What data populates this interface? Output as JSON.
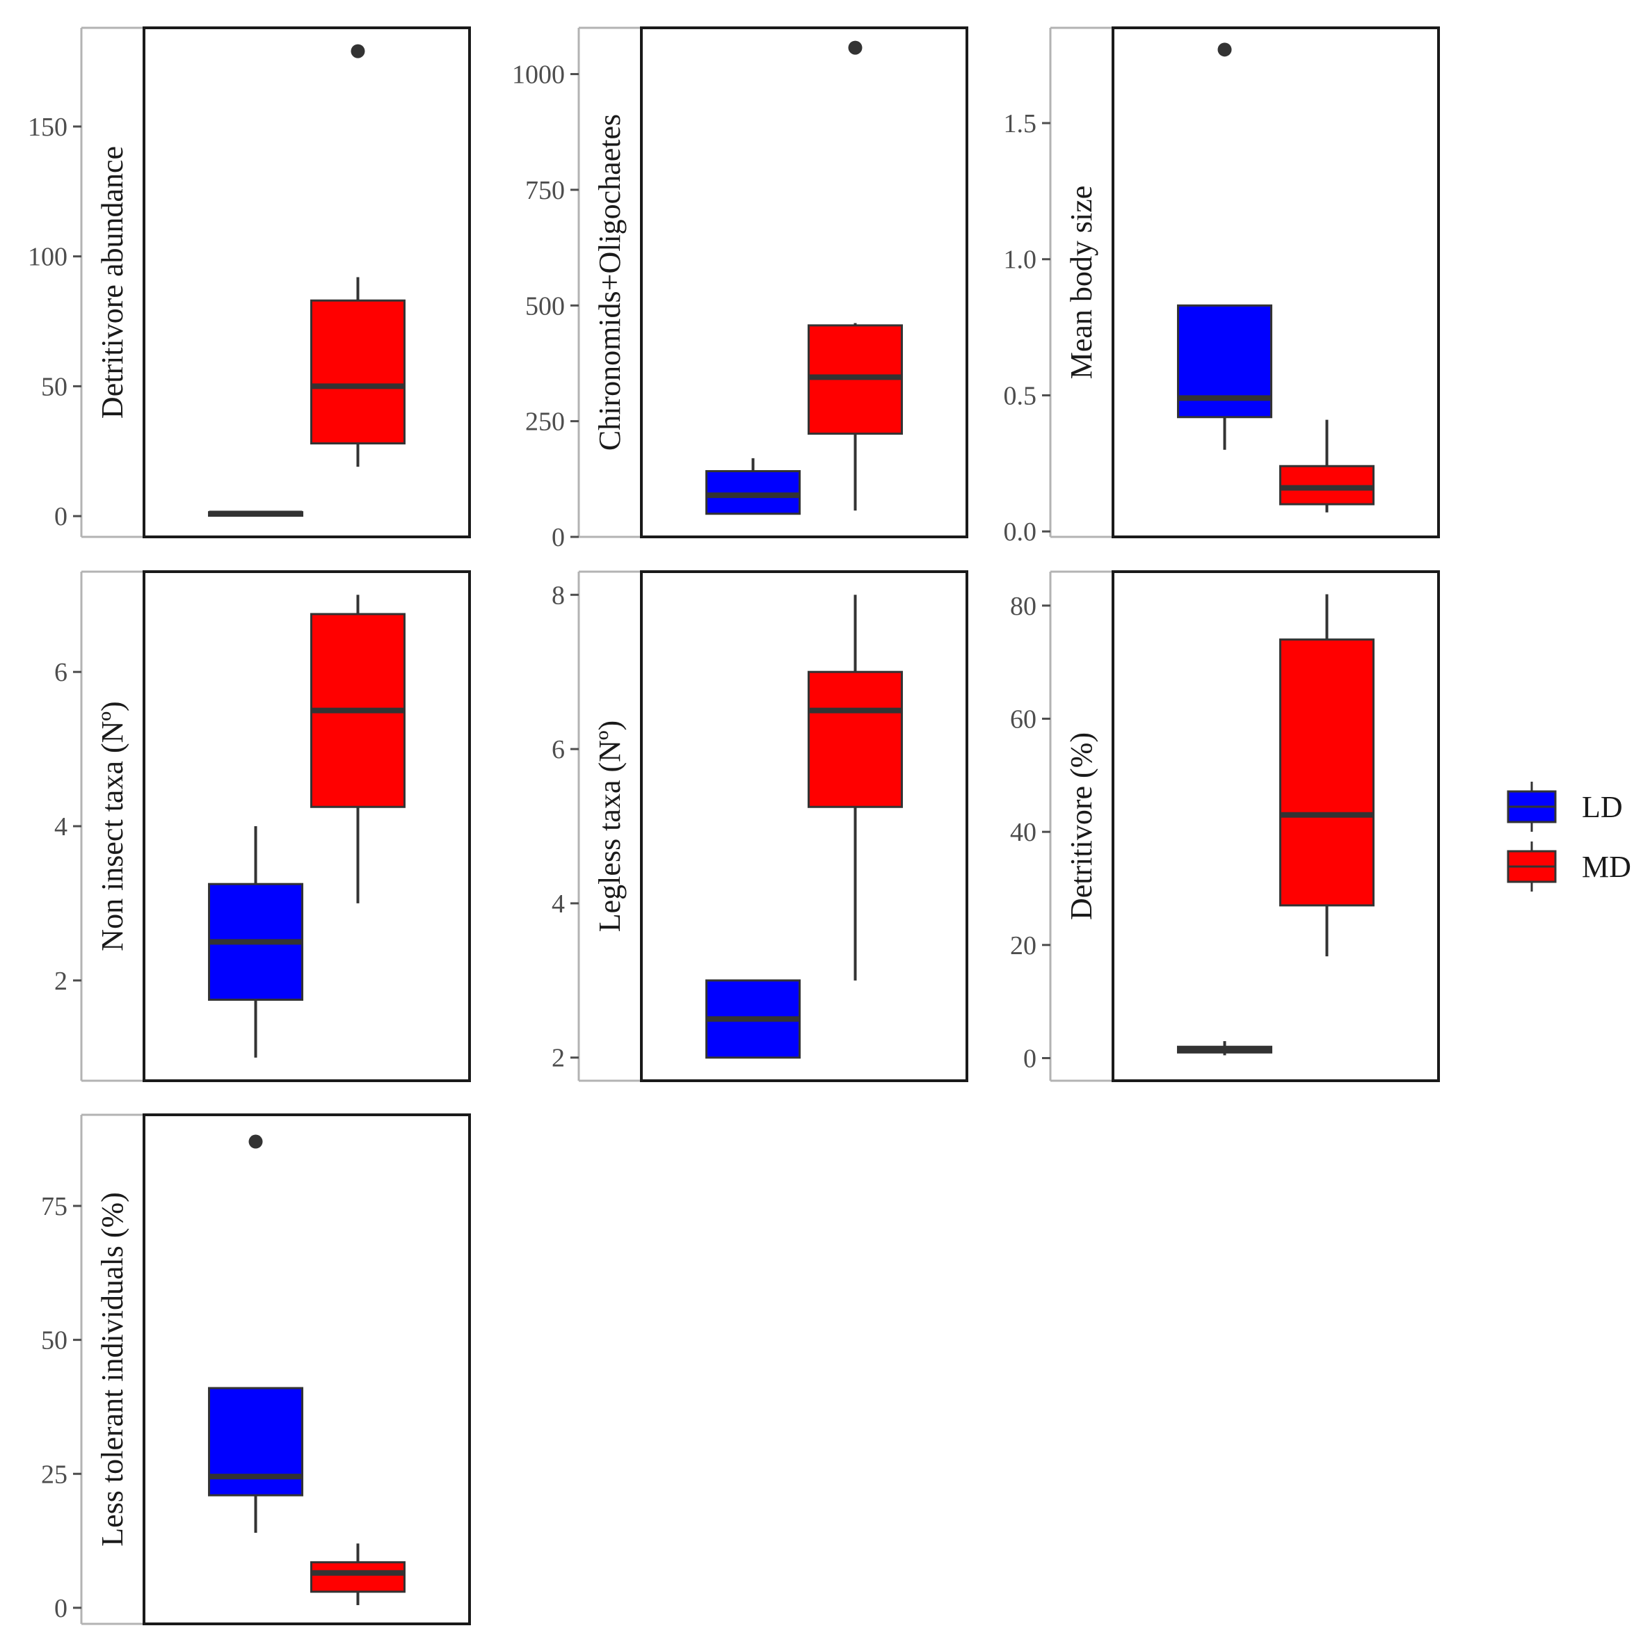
{
  "chart_data": {
    "type": "box",
    "groups": [
      "LD",
      "MD"
    ],
    "colors": {
      "LD": "#0000ff",
      "MD": "#ff0000",
      "line": "#333333",
      "frame": "#1a1a1a",
      "axis": "#b3b3b3"
    },
    "legend": {
      "position": "right",
      "items": [
        {
          "label": "LD",
          "color": "#0000ff"
        },
        {
          "label": "MD",
          "color": "#ff0000"
        }
      ]
    },
    "panels": [
      {
        "title": "Detritivore abundance",
        "ylim": [
          -8,
          188
        ],
        "ticks": [
          0,
          50,
          100,
          150
        ],
        "tick_labels": [
          "0",
          "50",
          "100",
          "150"
        ],
        "boxes": [
          {
            "group": "LD",
            "lower": 0,
            "q1": 0.5,
            "median": 1,
            "q3": 1.5,
            "upper": 2,
            "outliers": []
          },
          {
            "group": "MD",
            "lower": 19,
            "q1": 28,
            "median": 50,
            "q3": 83,
            "upper": 92,
            "outliers": [
              179
            ]
          }
        ]
      },
      {
        "title": "Chironomids+Oligochaetes",
        "ylim": [
          0,
          1100
        ],
        "ticks": [
          0,
          250,
          500,
          750,
          1000
        ],
        "tick_labels": [
          "0",
          "250",
          "500",
          "750",
          "1000"
        ],
        "boxes": [
          {
            "group": "LD",
            "lower": 50,
            "q1": 50,
            "median": 90,
            "q3": 142,
            "upper": 170,
            "outliers": []
          },
          {
            "group": "MD",
            "lower": 57,
            "q1": 223,
            "median": 345,
            "q3": 457,
            "upper": 462,
            "outliers": [
              1057
            ]
          }
        ]
      },
      {
        "title": "Mean body size",
        "ylim": [
          -0.02,
          1.85
        ],
        "ticks": [
          0.0,
          0.5,
          1.0,
          1.5
        ],
        "tick_labels": [
          "0.0",
          "0.5",
          "1.0",
          "1.5"
        ],
        "boxes": [
          {
            "group": "LD",
            "lower": 0.3,
            "q1": 0.42,
            "median": 0.49,
            "q3": 0.83,
            "upper": 0.83,
            "outliers": [
              1.77
            ]
          },
          {
            "group": "MD",
            "lower": 0.07,
            "q1": 0.1,
            "median": 0.16,
            "q3": 0.24,
            "upper": 0.41,
            "outliers": []
          }
        ]
      },
      {
        "title": "Non insect taxa (Nº)",
        "ylim": [
          0.7,
          7.3
        ],
        "ticks": [
          2,
          4,
          6
        ],
        "tick_labels": [
          "2",
          "4",
          "6"
        ],
        "boxes": [
          {
            "group": "LD",
            "lower": 1,
            "q1": 1.75,
            "median": 2.5,
            "q3": 3.25,
            "upper": 4,
            "outliers": []
          },
          {
            "group": "MD",
            "lower": 3,
            "q1": 4.25,
            "median": 5.5,
            "q3": 6.75,
            "upper": 7,
            "outliers": []
          }
        ]
      },
      {
        "title": "Legless taxa (Nº)",
        "ylim": [
          1.7,
          8.3
        ],
        "ticks": [
          2,
          4,
          6,
          8
        ],
        "tick_labels": [
          "2",
          "4",
          "6",
          "8"
        ],
        "boxes": [
          {
            "group": "LD",
            "lower": 2,
            "q1": 2,
            "median": 2.5,
            "q3": 3,
            "upper": 3,
            "outliers": []
          },
          {
            "group": "MD",
            "lower": 3,
            "q1": 5.25,
            "median": 6.5,
            "q3": 7,
            "upper": 8,
            "outliers": []
          }
        ]
      },
      {
        "title": "Detritivore (%)",
        "ylim": [
          -4,
          86
        ],
        "ticks": [
          0,
          20,
          40,
          60,
          80
        ],
        "tick_labels": [
          "0",
          "20",
          "40",
          "60",
          "80"
        ],
        "boxes": [
          {
            "group": "LD",
            "lower": 0.5,
            "q1": 1,
            "median": 1.5,
            "q3": 2,
            "upper": 3,
            "outliers": []
          },
          {
            "group": "MD",
            "lower": 18,
            "q1": 27,
            "median": 43,
            "q3": 74,
            "upper": 82,
            "outliers": []
          }
        ]
      },
      {
        "title": "Less tolerant individuals (%)",
        "ylim": [
          -3,
          92
        ],
        "ticks": [
          0,
          25,
          50,
          75
        ],
        "tick_labels": [
          "0",
          "25",
          "50",
          "75"
        ],
        "boxes": [
          {
            "group": "LD",
            "lower": 14,
            "q1": 21,
            "median": 24.5,
            "q3": 41,
            "upper": 41,
            "outliers": [
              87
            ]
          },
          {
            "group": "MD",
            "lower": 0.5,
            "q1": 3,
            "median": 6.5,
            "q3": 8.5,
            "upper": 12,
            "outliers": []
          }
        ]
      }
    ]
  }
}
